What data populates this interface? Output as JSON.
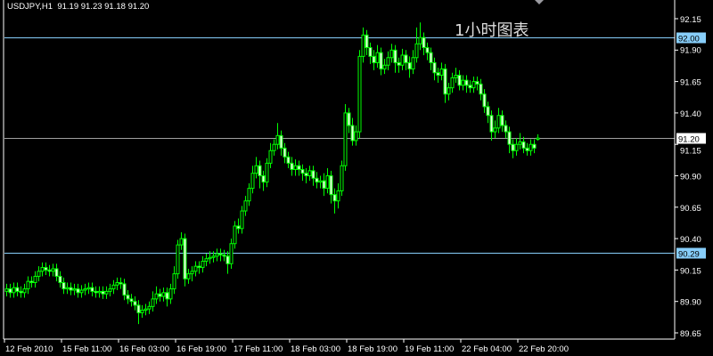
{
  "header": {
    "symbol_tf": "USDJPY,H1",
    "ohlc": "91.19 91.23 91.18 91.20"
  },
  "overlay_text": "1小时图表",
  "colors": {
    "background": "#000000",
    "candle": "#00FF00",
    "axis": "#FFFFFF",
    "level_line": "#87CEFA",
    "bid_line": "#A0A0A0"
  },
  "chart_data": {
    "type": "candlestick",
    "symbol": "USDJPY",
    "timeframe": "H1",
    "ylim": [
      89.6,
      92.25
    ],
    "yticks": [
      "92.15",
      "91.90",
      "91.65",
      "91.40",
      "91.15",
      "90.90",
      "90.65",
      "90.40",
      "90.15",
      "89.90",
      "89.65"
    ],
    "xticks": [
      {
        "label": "12 Feb 2010",
        "bar": 0
      },
      {
        "label": "15 Feb 11:00",
        "bar": 16
      },
      {
        "label": "16 Feb 03:00",
        "bar": 32
      },
      {
        "label": "16 Feb 19:00",
        "bar": 48
      },
      {
        "label": "17 Feb 11:00",
        "bar": 64
      },
      {
        "label": "18 Feb 03:00",
        "bar": 80
      },
      {
        "label": "18 Feb 19:00",
        "bar": 96
      },
      {
        "label": "19 Feb 11:00",
        "bar": 112
      },
      {
        "label": "22 Feb 04:00",
        "bar": 128
      },
      {
        "label": "22 Feb 20:00",
        "bar": 144
      }
    ],
    "levels": [
      {
        "price": 92.0,
        "label": "92.00",
        "kind": "level"
      },
      {
        "price": 91.2,
        "label": "91.20",
        "kind": "bid"
      },
      {
        "price": 90.29,
        "label": "90.29",
        "kind": "level"
      }
    ],
    "grid": false,
    "candles": [
      [
        89.98,
        90.04,
        89.94,
        90.0
      ],
      [
        90.0,
        90.04,
        89.93,
        89.97
      ],
      [
        89.97,
        90.05,
        89.93,
        90.01
      ],
      [
        90.01,
        90.05,
        89.94,
        89.98
      ],
      [
        89.98,
        90.02,
        89.93,
        89.97
      ],
      [
        89.97,
        90.04,
        89.93,
        90.0
      ],
      [
        90.0,
        90.1,
        89.96,
        90.06
      ],
      [
        90.06,
        90.1,
        90.01,
        90.05
      ],
      [
        90.05,
        90.14,
        90.01,
        90.1
      ],
      [
        90.1,
        90.18,
        90.06,
        90.14
      ],
      [
        90.14,
        90.21,
        90.1,
        90.17
      ],
      [
        90.17,
        90.21,
        90.11,
        90.15
      ],
      [
        90.15,
        90.19,
        90.1,
        90.14
      ],
      [
        90.14,
        90.2,
        90.1,
        90.16
      ],
      [
        90.16,
        90.2,
        90.06,
        90.1
      ],
      [
        90.1,
        90.14,
        90.01,
        90.05
      ],
      [
        90.05,
        90.09,
        89.96,
        90.0
      ],
      [
        90.0,
        90.05,
        89.96,
        90.01
      ],
      [
        90.01,
        90.05,
        89.95,
        89.99
      ],
      [
        89.99,
        90.04,
        89.95,
        90.0
      ],
      [
        90.0,
        90.04,
        89.93,
        89.97
      ],
      [
        89.97,
        90.03,
        89.93,
        89.99
      ],
      [
        89.99,
        90.04,
        89.95,
        90.0
      ],
      [
        90.0,
        90.05,
        89.96,
        90.01
      ],
      [
        90.01,
        90.05,
        89.94,
        89.98
      ],
      [
        89.98,
        90.02,
        89.93,
        89.97
      ],
      [
        89.97,
        90.02,
        89.93,
        89.98
      ],
      [
        89.98,
        90.02,
        89.92,
        89.96
      ],
      [
        89.96,
        90.02,
        89.92,
        89.98
      ],
      [
        89.98,
        90.04,
        89.94,
        90.0
      ],
      [
        90.0,
        90.07,
        89.96,
        90.03
      ],
      [
        90.03,
        90.09,
        89.99,
        90.05
      ],
      [
        90.05,
        90.09,
        90.0,
        90.04
      ],
      [
        90.04,
        90.08,
        89.91,
        89.95
      ],
      [
        89.95,
        89.99,
        89.88,
        89.92
      ],
      [
        89.92,
        89.96,
        89.86,
        89.9
      ],
      [
        89.9,
        89.94,
        89.83,
        89.87
      ],
      [
        89.87,
        89.91,
        89.72,
        89.81
      ],
      [
        89.81,
        89.87,
        89.77,
        89.83
      ],
      [
        89.83,
        89.88,
        89.79,
        89.84
      ],
      [
        89.84,
        89.9,
        89.8,
        89.86
      ],
      [
        89.86,
        89.98,
        89.82,
        89.92
      ],
      [
        89.92,
        90.02,
        89.88,
        89.96
      ],
      [
        89.96,
        90.0,
        89.9,
        89.94
      ],
      [
        89.94,
        90.01,
        89.9,
        89.97
      ],
      [
        89.97,
        90.01,
        89.86,
        89.92
      ],
      [
        89.92,
        90.04,
        89.88,
        90.0
      ],
      [
        90.0,
        90.18,
        89.96,
        90.12
      ],
      [
        90.12,
        90.39,
        90.08,
        90.35
      ],
      [
        90.35,
        90.45,
        90.31,
        90.4
      ],
      [
        90.4,
        90.44,
        90.02,
        90.08
      ],
      [
        90.08,
        90.16,
        90.04,
        90.12
      ],
      [
        90.12,
        90.18,
        90.06,
        90.14
      ],
      [
        90.14,
        90.22,
        90.1,
        90.18
      ],
      [
        90.18,
        90.22,
        90.12,
        90.17
      ],
      [
        90.17,
        90.26,
        90.13,
        90.22
      ],
      [
        90.22,
        90.28,
        90.18,
        90.24
      ],
      [
        90.24,
        90.3,
        90.2,
        90.25
      ],
      [
        90.25,
        90.3,
        90.21,
        90.26
      ],
      [
        90.26,
        90.32,
        90.22,
        90.28
      ],
      [
        90.28,
        90.32,
        90.22,
        90.27
      ],
      [
        90.27,
        90.31,
        90.22,
        90.26
      ],
      [
        90.26,
        90.3,
        90.12,
        90.2
      ],
      [
        90.2,
        90.4,
        90.16,
        90.36
      ],
      [
        90.36,
        90.54,
        90.32,
        90.5
      ],
      [
        90.5,
        90.56,
        90.44,
        90.48
      ],
      [
        90.48,
        90.66,
        90.44,
        90.62
      ],
      [
        90.62,
        90.74,
        90.58,
        90.7
      ],
      [
        90.7,
        90.84,
        90.66,
        90.8
      ],
      [
        90.8,
        90.98,
        90.76,
        90.92
      ],
      [
        90.92,
        91.05,
        90.88,
        90.98
      ],
      [
        90.98,
        91.02,
        90.8,
        90.9
      ],
      [
        90.9,
        90.94,
        90.78,
        90.85
      ],
      [
        90.85,
        91.04,
        90.81,
        91.0
      ],
      [
        91.0,
        91.16,
        90.96,
        91.1
      ],
      [
        91.1,
        91.19,
        91.06,
        91.15
      ],
      [
        91.15,
        91.32,
        91.11,
        91.22
      ],
      [
        91.22,
        91.26,
        91.06,
        91.12
      ],
      [
        91.12,
        91.16,
        91.0,
        91.05
      ],
      [
        91.05,
        91.09,
        90.96,
        91.0
      ],
      [
        91.0,
        91.05,
        90.9,
        90.95
      ],
      [
        90.95,
        91.03,
        90.9,
        90.98
      ],
      [
        90.98,
        91.02,
        90.9,
        90.95
      ],
      [
        90.95,
        90.99,
        90.86,
        90.92
      ],
      [
        90.92,
        90.96,
        90.84,
        90.9
      ],
      [
        90.9,
        90.98,
        90.86,
        90.94
      ],
      [
        90.94,
        90.98,
        90.82,
        90.88
      ],
      [
        90.88,
        90.93,
        90.8,
        90.85
      ],
      [
        90.85,
        90.9,
        90.8,
        90.86
      ],
      [
        90.86,
        90.92,
        90.74,
        90.8
      ],
      [
        90.8,
        90.96,
        90.76,
        90.9
      ],
      [
        90.9,
        90.94,
        90.68,
        90.75
      ],
      [
        90.75,
        90.8,
        90.6,
        90.7
      ],
      [
        90.7,
        90.84,
        90.64,
        90.78
      ],
      [
        90.78,
        91.02,
        90.74,
        90.98
      ],
      [
        90.98,
        91.47,
        90.94,
        91.4
      ],
      [
        91.4,
        91.44,
        91.24,
        91.3
      ],
      [
        91.3,
        91.36,
        91.14,
        91.18
      ],
      [
        91.18,
        91.3,
        91.14,
        91.25
      ],
      [
        91.25,
        91.9,
        91.2,
        91.85
      ],
      [
        91.85,
        92.08,
        91.8,
        92.02
      ],
      [
        92.02,
        92.06,
        91.86,
        91.92
      ],
      [
        91.92,
        91.96,
        91.79,
        91.85
      ],
      [
        91.85,
        91.9,
        91.74,
        91.8
      ],
      [
        91.8,
        91.94,
        91.76,
        91.88
      ],
      [
        91.88,
        91.92,
        91.7,
        91.75
      ],
      [
        91.75,
        91.83,
        91.71,
        91.78
      ],
      [
        91.78,
        91.89,
        91.74,
        91.84
      ],
      [
        91.84,
        91.95,
        91.8,
        91.9
      ],
      [
        91.9,
        91.94,
        91.72,
        91.8
      ],
      [
        91.8,
        91.84,
        91.72,
        91.78
      ],
      [
        91.78,
        91.91,
        91.74,
        91.86
      ],
      [
        91.86,
        91.9,
        91.74,
        91.8
      ],
      [
        91.8,
        91.85,
        91.68,
        91.75
      ],
      [
        91.75,
        91.9,
        91.71,
        91.84
      ],
      [
        91.84,
        92.08,
        91.8,
        91.95
      ],
      [
        91.95,
        92.12,
        91.9,
        92.0
      ],
      [
        92.0,
        92.04,
        91.86,
        91.92
      ],
      [
        91.92,
        91.96,
        91.82,
        91.88
      ],
      [
        91.88,
        91.92,
        91.74,
        91.8
      ],
      [
        91.8,
        91.84,
        91.66,
        91.72
      ],
      [
        91.72,
        91.76,
        91.64,
        91.7
      ],
      [
        91.7,
        91.8,
        91.66,
        91.75
      ],
      [
        91.75,
        91.79,
        91.48,
        91.55
      ],
      [
        91.55,
        91.64,
        91.5,
        91.6
      ],
      [
        91.6,
        91.72,
        91.56,
        91.68
      ],
      [
        91.68,
        91.76,
        91.64,
        91.7
      ],
      [
        91.7,
        91.74,
        91.58,
        91.62
      ],
      [
        91.62,
        91.7,
        91.58,
        91.66
      ],
      [
        91.66,
        91.7,
        91.56,
        91.62
      ],
      [
        91.62,
        91.66,
        91.56,
        91.6
      ],
      [
        91.6,
        91.69,
        91.56,
        91.65
      ],
      [
        91.65,
        91.69,
        91.58,
        91.63
      ],
      [
        91.63,
        91.67,
        91.5,
        91.55
      ],
      [
        91.55,
        91.59,
        91.4,
        91.45
      ],
      [
        91.45,
        91.49,
        91.32,
        91.38
      ],
      [
        91.38,
        91.42,
        91.18,
        91.25
      ],
      [
        91.25,
        91.34,
        91.2,
        91.28
      ],
      [
        91.28,
        91.44,
        91.24,
        91.38
      ],
      [
        91.38,
        91.42,
        91.25,
        91.3
      ],
      [
        91.3,
        91.34,
        91.2,
        91.25
      ],
      [
        91.25,
        91.29,
        91.08,
        91.15
      ],
      [
        91.15,
        91.19,
        91.04,
        91.1
      ],
      [
        91.1,
        91.2,
        91.06,
        91.15
      ],
      [
        91.15,
        91.24,
        91.11,
        91.17
      ],
      [
        91.17,
        91.21,
        91.08,
        91.12
      ],
      [
        91.12,
        91.16,
        91.06,
        91.1
      ],
      [
        91.1,
        91.19,
        91.06,
        91.15
      ],
      [
        91.15,
        91.19,
        91.08,
        91.12
      ],
      [
        91.19,
        91.23,
        91.18,
        91.2
      ]
    ]
  }
}
